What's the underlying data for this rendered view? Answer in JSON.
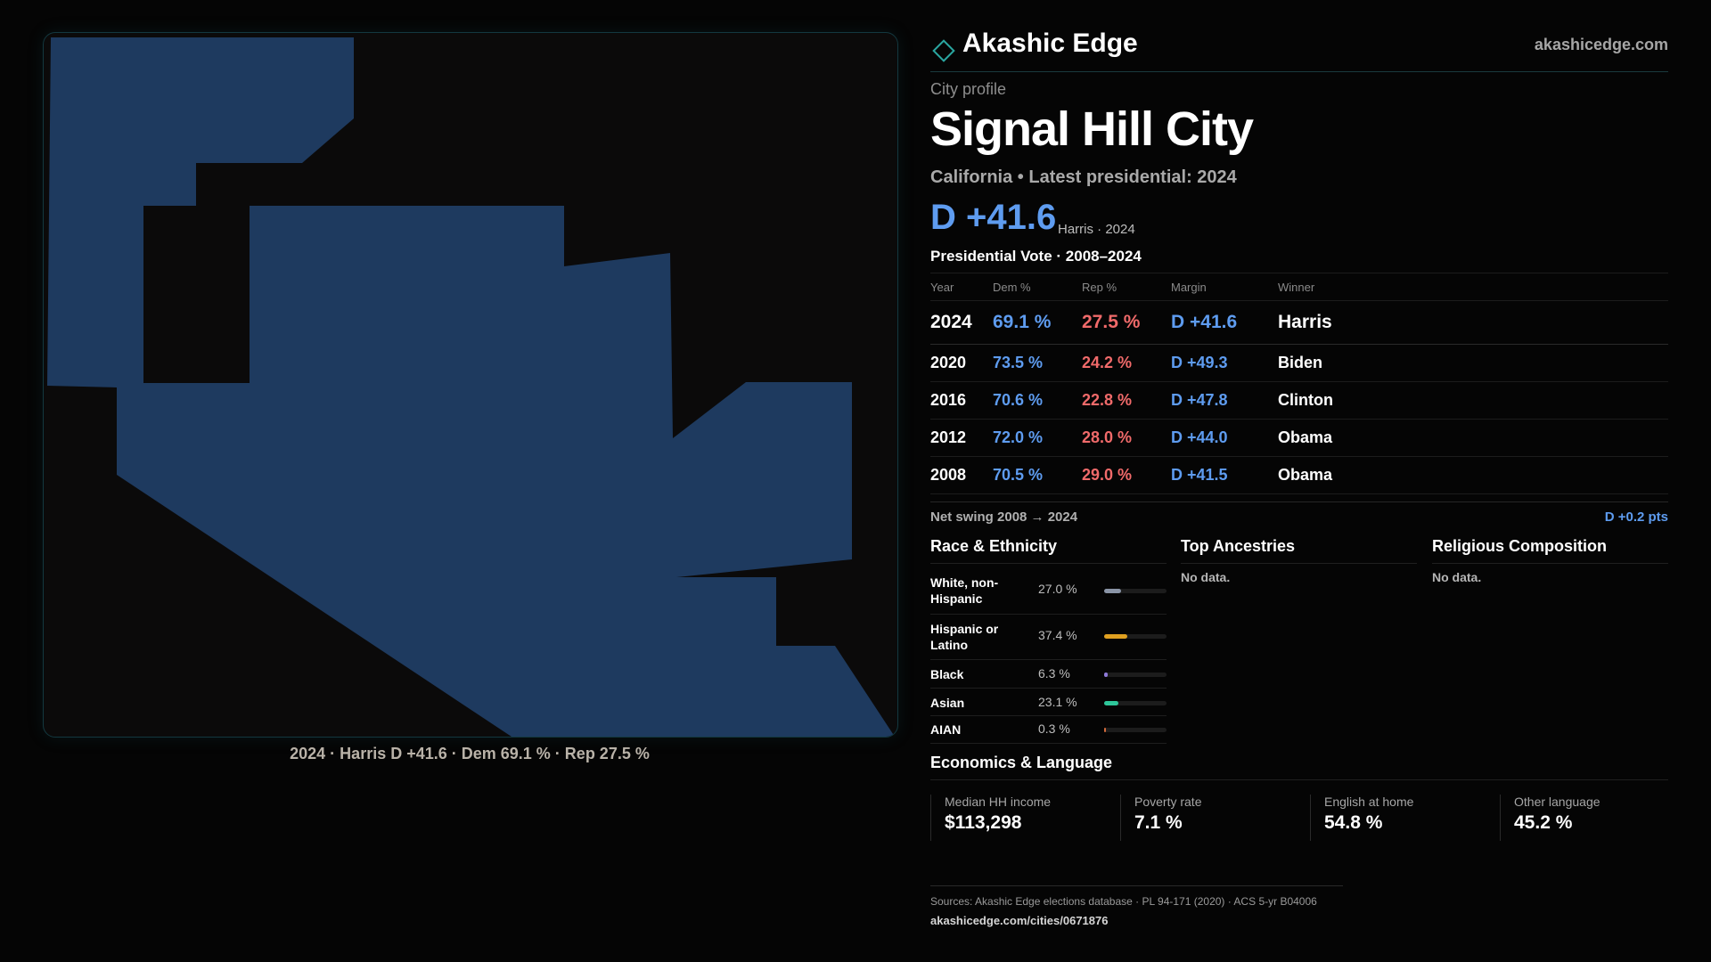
{
  "brand": {
    "name": "Akashic Edge",
    "link": "akashicedge.com",
    "logo_icon": "diamond-icon"
  },
  "profile": {
    "kind": "City profile",
    "city": "Signal Hill City",
    "subtitle": "California • Latest presidential: 2024",
    "headline_margin": "D +41.6",
    "headline_note": "Harris · 2024"
  },
  "map": {
    "caption": "2024 · Harris D +41.6 · Dem 69.1 % · Rep 27.5 %",
    "fill_color": "#1e3a5f",
    "border_color": "#13383f"
  },
  "presidential": {
    "heading": "Presidential Vote · 2008–2024",
    "columns": [
      "Year",
      "Dem %",
      "Rep %",
      "Margin",
      "Winner"
    ],
    "rows": [
      {
        "year": "2024",
        "dem": "69.1 %",
        "rep": "27.5 %",
        "margin": "D +41.6",
        "winner": "Harris"
      },
      {
        "year": "2020",
        "dem": "73.5 %",
        "rep": "24.2 %",
        "margin": "D +49.3",
        "winner": "Biden"
      },
      {
        "year": "2016",
        "dem": "70.6 %",
        "rep": "22.8 %",
        "margin": "D +47.8",
        "winner": "Clinton"
      },
      {
        "year": "2012",
        "dem": "72.0 %",
        "rep": "28.0 %",
        "margin": "D +44.0",
        "winner": "Obama"
      },
      {
        "year": "2008",
        "dem": "70.5 %",
        "rep": "29.0 %",
        "margin": "D +41.5",
        "winner": "Obama"
      }
    ],
    "swing_label": "Net swing 2008 → 2024",
    "swing_value": "D +0.2 pts"
  },
  "race": {
    "title": "Race & Ethnicity",
    "rows": [
      {
        "label": "White, non-Hispanic",
        "pct": "27.0 %",
        "value": 27.0,
        "color": "#8a94a6"
      },
      {
        "label": "Hispanic or Latino",
        "pct": "37.4 %",
        "value": 37.4,
        "color": "#e0a020"
      },
      {
        "label": "Black",
        "pct": "6.3 %",
        "value": 6.3,
        "color": "#8e7ad8"
      },
      {
        "label": "Asian",
        "pct": "23.1 %",
        "value": 23.1,
        "color": "#2ec79a"
      },
      {
        "label": "AIAN",
        "pct": "0.3 %",
        "value": 0.3,
        "color": "#d26a3a"
      }
    ]
  },
  "ancestries": {
    "title": "Top Ancestries",
    "empty": "No data."
  },
  "religion": {
    "title": "Religious Composition",
    "empty": "No data."
  },
  "economics": {
    "title": "Economics & Language",
    "cards": [
      {
        "label": "Median HH income",
        "value": "$113,298"
      },
      {
        "label": "Poverty rate",
        "value": "7.1 %"
      },
      {
        "label": "English at home",
        "value": "54.8 %"
      },
      {
        "label": "Other language",
        "value": "45.2 %"
      }
    ]
  },
  "footer": {
    "sources": "Sources: Akashic Edge elections database · PL 94-171 (2020) · ACS 5-yr B04006",
    "url": "akashicedge.com/cities/0671876"
  }
}
